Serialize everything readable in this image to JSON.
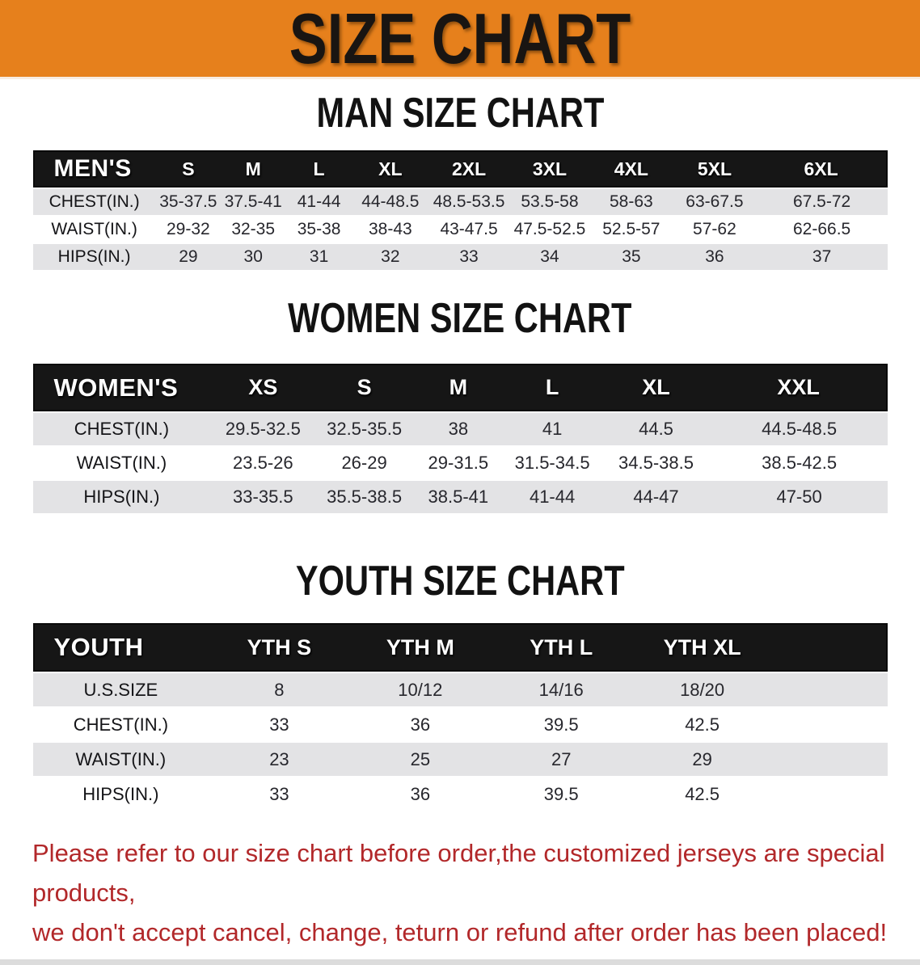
{
  "colors": {
    "banner_bg": "#E6801C",
    "header_black": "#161616",
    "row_gray": "#e3e3e5",
    "notice_red": "#B2282A"
  },
  "banner": {
    "title": "SIZE CHART"
  },
  "sections": [
    {
      "heading": "MAN SIZE CHART",
      "table": {
        "header": [
          "MEN'S",
          "S",
          "M",
          "L",
          "XL",
          "2XL",
          "3XL",
          "4XL",
          "5XL",
          "6XL"
        ],
        "rows": [
          {
            "label": "CHEST(IN.)",
            "values": [
              "35-37.5",
              "37.5-41",
              "41-44",
              "44-48.5",
              "48.5-53.5",
              "53.5-58",
              "58-63",
              "63-67.5",
              "67.5-72"
            ]
          },
          {
            "label": "WAIST(IN.)",
            "values": [
              "29-32",
              "32-35",
              "35-38",
              "38-43",
              "43-47.5",
              "47.5-52.5",
              "52.5-57",
              "57-62",
              "62-66.5"
            ]
          },
          {
            "label": "HIPS(IN.)",
            "values": [
              "29",
              "30",
              "31",
              "32",
              "33",
              "34",
              "35",
              "36",
              "37"
            ]
          }
        ]
      }
    },
    {
      "heading": "WOMEN SIZE CHART",
      "table": {
        "header": [
          "WOMEN'S",
          "XS",
          "S",
          "M",
          "L",
          "XL",
          "XXL"
        ],
        "rows": [
          {
            "label": "CHEST(IN.)",
            "values": [
              "29.5-32.5",
              "32.5-35.5",
              "38",
              "41",
              "44.5",
              "44.5-48.5"
            ]
          },
          {
            "label": "WAIST(IN.)",
            "values": [
              "23.5-26",
              "26-29",
              "29-31.5",
              "31.5-34.5",
              "34.5-38.5",
              "38.5-42.5"
            ]
          },
          {
            "label": "HIPS(IN.)",
            "values": [
              "33-35.5",
              "35.5-38.5",
              "38.5-41",
              "41-44",
              "44-47",
              "47-50"
            ]
          }
        ]
      }
    },
    {
      "heading": "YOUTH SIZE CHART",
      "table": {
        "header": [
          "YOUTH",
          "YTH S",
          "YTH M",
          "YTH L",
          "YTH XL",
          ""
        ],
        "rows": [
          {
            "label": "U.S.SIZE",
            "values": [
              "8",
              "10/12",
              "14/16",
              "18/20",
              ""
            ]
          },
          {
            "label": "CHEST(IN.)",
            "values": [
              "33",
              "36",
              "39.5",
              "42.5",
              ""
            ]
          },
          {
            "label": "WAIST(IN.)",
            "values": [
              "23",
              "25",
              "27",
              "29",
              ""
            ]
          },
          {
            "label": "HIPS(IN.)",
            "values": [
              "33",
              "36",
              "39.5",
              "42.5",
              ""
            ]
          }
        ]
      }
    }
  ],
  "footer": {
    "line1": "Please refer to our size chart before order,the customized jerseys are special products,",
    "line2": "we don't accept cancel, change, teturn or refund after order has been placed!"
  }
}
